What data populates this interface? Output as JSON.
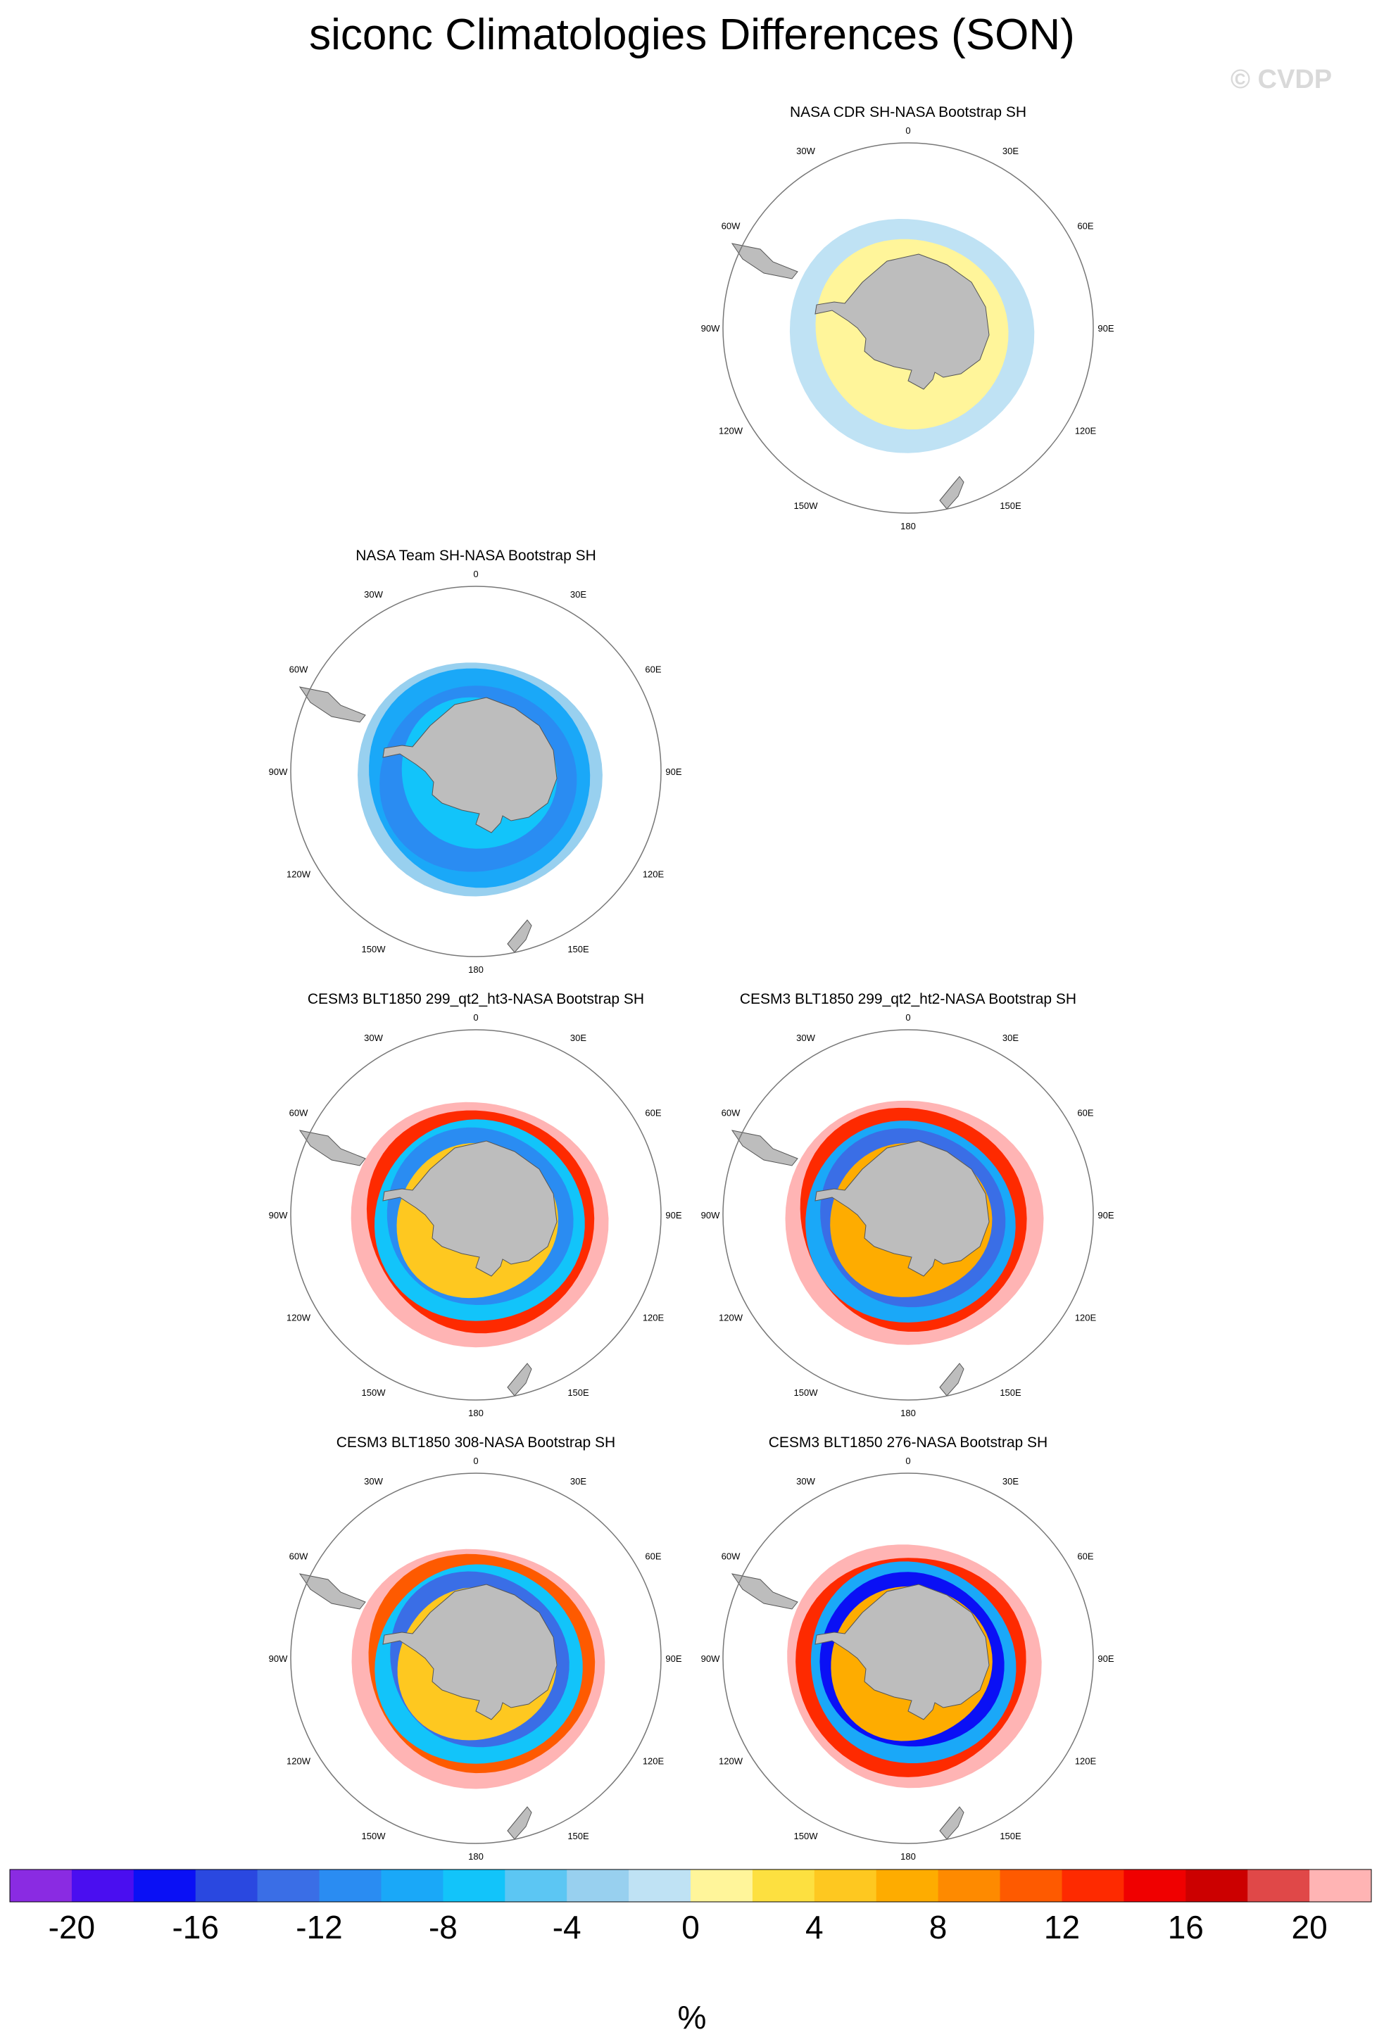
{
  "title": "siconc Climatologies Differences (SON)",
  "watermark": "© CVDP",
  "colors": {
    "land": "#bdbdbd",
    "levels": [
      "#8a2be2",
      "#4a0ef0",
      "#0a10f5",
      "#2a48e0",
      "#3a6ee6",
      "#2a8cf2",
      "#1aa8f8",
      "#12c4fa",
      "#5cc6f3",
      "#98d0ef",
      "#bfe2f4",
      "#fff59a",
      "#fde040",
      "#fec820",
      "#feac00",
      "#fe8a00",
      "#fe5a00",
      "#fe2a00",
      "#f00000",
      "#cc0000",
      "#e04848",
      "#ffb4b4"
    ]
  },
  "panels": [
    {
      "title": "NASA CDR SH-NASA Bootstrap SH",
      "pattern": "cdr"
    },
    {
      "title": "NASA Team SH-NASA Bootstrap SH",
      "pattern": "team"
    },
    {
      "title": "CESM3 BLT1850 299_qt2_ht3-NASA Bootstrap SH",
      "pattern": "model_a"
    },
    {
      "title": "CESM3 BLT1850 299_qt2_ht2-NASA Bootstrap SH",
      "pattern": "model_b"
    },
    {
      "title": "CESM3 BLT1850 308-NASA Bootstrap SH",
      "pattern": "model_c"
    },
    {
      "title": "CESM3 BLT1850 276-NASA Bootstrap SH",
      "pattern": "model_d"
    }
  ],
  "lon_labels": [
    "0",
    "30E",
    "60E",
    "90E",
    "120E",
    "150E",
    "180",
    "150W",
    "120W",
    "90W",
    "60W",
    "30W"
  ],
  "chart_data": {
    "type": "heatmap",
    "title": "siconc Climatologies Differences (SON)",
    "projection": "south polar stereographic",
    "colorbar": {
      "label": "%",
      "tick_labels": [
        "-20",
        "-16",
        "-12",
        "-8",
        "-4",
        "0",
        "4",
        "8",
        "12",
        "16",
        "20"
      ],
      "levels": [
        -22,
        -20,
        -18,
        -16,
        -14,
        -12,
        -10,
        -8,
        -6,
        -4,
        -2,
        0,
        2,
        4,
        6,
        8,
        10,
        12,
        14,
        16,
        18,
        20,
        22
      ]
    }
  }
}
